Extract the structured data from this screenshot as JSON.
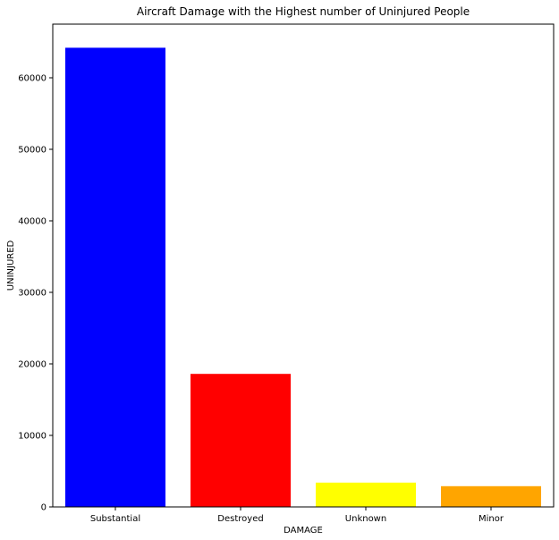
{
  "chart_data": {
    "type": "bar",
    "title": "Aircraft Damage with the Highest number of Uninjured People",
    "xlabel": "DAMAGE",
    "ylabel": "UNINJURED",
    "categories": [
      "Substantial",
      "Destroyed",
      "Unknown",
      "Minor"
    ],
    "values": [
      64200,
      18600,
      3400,
      2900
    ],
    "colors": [
      "#0000ff",
      "#ff0000",
      "#ffff00",
      "#ffa500"
    ],
    "ylim": [
      0,
      67500
    ],
    "yticks": [
      0,
      10000,
      20000,
      30000,
      40000,
      50000,
      60000
    ],
    "grid": false,
    "legend": "none"
  }
}
